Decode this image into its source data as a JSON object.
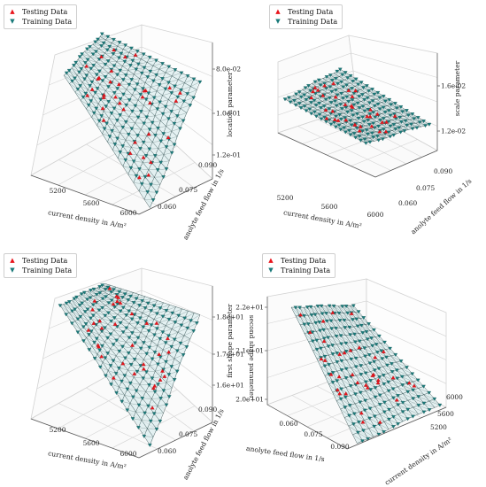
{
  "colors": {
    "testing": "#e8141b",
    "training": "#1a7a7a",
    "surface": "#cfe8ea",
    "mesh": "#0f2f30",
    "grid": "#d2d2d2",
    "axis": "#555555"
  },
  "legend": {
    "testing": "Testing Data",
    "training": "Training Data"
  },
  "chart_data": [
    {
      "type": "surface3d",
      "title": "",
      "xlabel": "current density in A/m²",
      "ylabel": "anolyte feed flow in 1/s",
      "zlabel": "location parameter",
      "x_ticks": [
        "5200",
        "5600",
        "6000"
      ],
      "y_ticks": [
        "0.060",
        "0.075",
        "0.090"
      ],
      "z_ticks": [
        "8.0e-02",
        "1.0e-01",
        "1.2e-01"
      ],
      "xlim": [
        5000,
        6000
      ],
      "ylim": [
        0.05,
        0.095
      ],
      "zlim": [
        0.075,
        0.13
      ],
      "series": [
        {
          "name": "Testing Data",
          "marker": "triangle-up"
        },
        {
          "name": "Training Data",
          "marker": "triangle-down"
        }
      ]
    },
    {
      "type": "surface3d",
      "title": "",
      "xlabel": "current density in A/m²",
      "ylabel": "anolyte feed flow in 1/s",
      "zlabel": "scale parameter",
      "x_ticks": [
        "5200",
        "5600",
        "6000"
      ],
      "y_ticks": [
        "0.060",
        "0.075",
        "0.090"
      ],
      "z_ticks": [
        "1.2e-02",
        "1.6e-02"
      ],
      "xlim": [
        5000,
        6000
      ],
      "ylim": [
        0.05,
        0.095
      ],
      "zlim": [
        0.01,
        0.018
      ],
      "series": [
        {
          "name": "Testing Data",
          "marker": "triangle-up"
        },
        {
          "name": "Training Data",
          "marker": "triangle-down"
        }
      ]
    },
    {
      "type": "surface3d",
      "title": "",
      "xlabel": "current density in A/m²",
      "ylabel": "anolyte feed flow in 1/s",
      "zlabel": "first shape parameter",
      "x_ticks": [
        "5200",
        "5600",
        "6000"
      ],
      "y_ticks": [
        "0.060",
        "0.075",
        "0.090"
      ],
      "z_ticks": [
        "1.6e+01",
        "1.7e+01",
        "1.8e+01"
      ],
      "xlim": [
        5000,
        6000
      ],
      "ylim": [
        0.05,
        0.095
      ],
      "zlim": [
        15.5,
        18.5
      ],
      "series": [
        {
          "name": "Testing Data",
          "marker": "triangle-up"
        },
        {
          "name": "Training Data",
          "marker": "triangle-down"
        }
      ]
    },
    {
      "type": "surface3d",
      "title": "",
      "xlabel": "anolyte feed flow in 1/s",
      "ylabel": "current density in A/m²",
      "zlabel": "second shape parameter",
      "x_ticks": [
        "0.060",
        "0.075",
        "0.090"
      ],
      "y_ticks": [
        "5200",
        "5600",
        "6000"
      ],
      "z_ticks": [
        "2.0e+01",
        "2.1e+01",
        "2.2e+01"
      ],
      "xlim": [
        0.05,
        0.095
      ],
      "ylim": [
        5000,
        6000
      ],
      "zlim": [
        19.8,
        22.3
      ],
      "series": [
        {
          "name": "Testing Data",
          "marker": "triangle-up"
        },
        {
          "name": "Training Data",
          "marker": "triangle-down"
        }
      ]
    }
  ]
}
